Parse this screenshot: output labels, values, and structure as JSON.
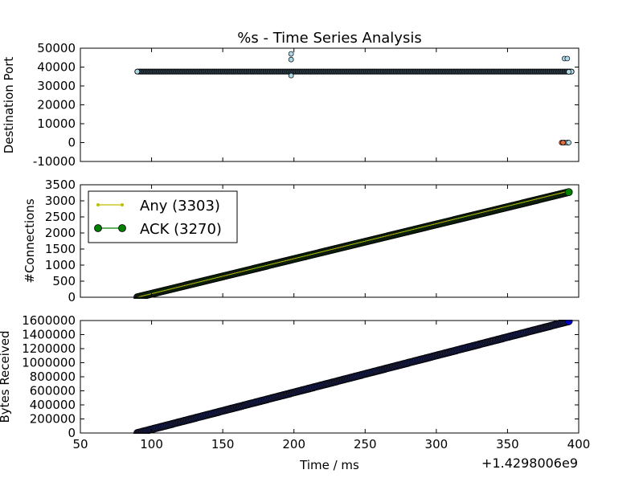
{
  "figure": {
    "title": "%s - Time Series Analysis",
    "xlabel": "Time / ms",
    "x_offset_label": "+1.4298006e9",
    "xticks": [
      50,
      100,
      150,
      200,
      250,
      300,
      350,
      400
    ],
    "xlim": [
      50,
      400
    ]
  },
  "chart_data": [
    {
      "type": "scatter",
      "ylabel": "Destination Port",
      "ylim": [
        -10000,
        50000
      ],
      "yticks": [
        -10000,
        0,
        10000,
        20000,
        30000,
        40000,
        50000
      ],
      "grid": false,
      "series": [
        {
          "color": "#add8e6",
          "points": [
            [
              90,
              37600
            ],
            [
              395,
              37600
            ],
            [
              198,
              47000
            ],
            [
              198,
              44000
            ],
            [
              198,
              35500
            ],
            [
              390,
              44500
            ],
            [
              392,
              44500
            ],
            [
              393,
              37500
            ],
            [
              390,
              0
            ],
            [
              392,
              0
            ],
            [
              393,
              0
            ]
          ]
        },
        {
          "color": "#e07040",
          "points": [
            [
              388,
              0
            ],
            [
              389,
              0
            ]
          ]
        }
      ],
      "band": {
        "x": [
          90,
          395
        ],
        "y": 37600,
        "color": "#000000"
      }
    },
    {
      "type": "line",
      "ylabel": "#Connections",
      "ylim": [
        0,
        3500
      ],
      "yticks": [
        0,
        500,
        1000,
        1500,
        2000,
        2500,
        3000,
        3500
      ],
      "grid": false,
      "legend_position": "top-left",
      "series": [
        {
          "name": "Any (3303)",
          "color": "#bfbf00",
          "x": [
            90,
            393
          ],
          "y": [
            0,
            3303
          ]
        },
        {
          "name": "ACK (3270)",
          "color": "#007f00",
          "x": [
            90,
            393
          ],
          "y": [
            0,
            3270
          ]
        }
      ]
    },
    {
      "type": "scatter",
      "ylabel": "Bytes Received",
      "ylim": [
        0,
        1600000
      ],
      "yticks": [
        0,
        200000,
        400000,
        600000,
        800000,
        1000000,
        1200000,
        1400000,
        1600000
      ],
      "grid": false,
      "series": [
        {
          "color": "#0000cd",
          "x": [
            90,
            393
          ],
          "y": [
            0,
            1590000
          ]
        }
      ]
    }
  ]
}
